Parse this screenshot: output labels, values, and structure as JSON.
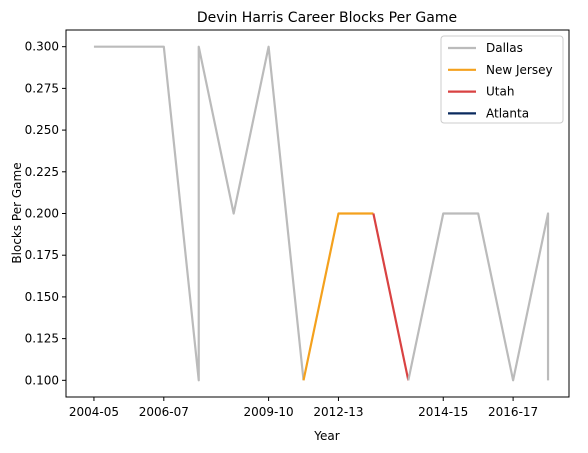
{
  "chart_data": {
    "type": "line",
    "title": "Devin Harris Career Blocks Per Game",
    "xlabel": "Year",
    "ylabel": "Blocks Per Game",
    "x_ticks": [
      "2004-05",
      "2006-07",
      "2009-10",
      "2012-13",
      "2014-15",
      "2016-17"
    ],
    "x_tick_positions": [
      0,
      2,
      5,
      7,
      10,
      12
    ],
    "y_ticks": [
      "0.100",
      "0.125",
      "0.150",
      "0.175",
      "0.200",
      "0.225",
      "0.250",
      "0.275",
      "0.300"
    ],
    "xlim": [
      -0.8,
      13.6
    ],
    "ylim": [
      0.09,
      0.31
    ],
    "legend_position": "top-right",
    "grid": false,
    "series": [
      {
        "name": "Dallas",
        "color": "#bbbbbb",
        "points": [
          [
            0,
            0.3
          ],
          [
            2,
            0.3
          ],
          [
            3,
            0.1
          ],
          [
            3,
            0.3
          ],
          [
            4,
            0.2
          ],
          [
            5,
            0.3
          ],
          [
            6,
            0.1
          ]
        ]
      },
      {
        "name": "New Jersey",
        "color": "#f4a11d",
        "points": [
          [
            6,
            0.1
          ],
          [
            7,
            0.2
          ],
          [
            8,
            0.2
          ]
        ]
      },
      {
        "name": "Utah",
        "color": "#d94242",
        "points": [
          [
            8,
            0.2
          ],
          [
            9,
            0.1
          ]
        ]
      },
      {
        "name": "Atlanta",
        "color": "#0a2a5e",
        "points": []
      },
      {
        "name": "",
        "color": "#bbbbbb",
        "points": [
          [
            9,
            0.1
          ],
          [
            10,
            0.2
          ],
          [
            11,
            0.2
          ],
          [
            12,
            0.1
          ],
          [
            13,
            0.2
          ],
          [
            13,
            0.1
          ]
        ]
      }
    ]
  }
}
